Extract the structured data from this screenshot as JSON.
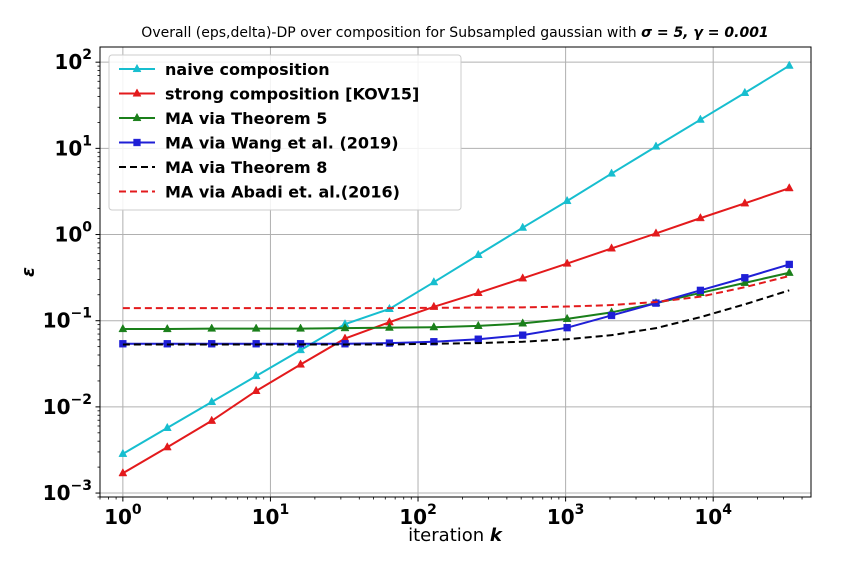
{
  "chart_data": {
    "type": "line",
    "title_parts": {
      "text": "Overall (eps,delta)-DP over composition for Subsampled gaussian with ",
      "math": "σ = 5, γ = 0.001"
    },
    "xlabel": {
      "text": "iteration ",
      "math": "k"
    },
    "ylabel": "ε",
    "xscale": "log",
    "yscale": "log",
    "xlim": [
      0.7,
      46000
    ],
    "ylim": [
      0.0009,
      150
    ],
    "grid": true,
    "legend_position": "upper-left",
    "x_ticks": [
      {
        "value": 1,
        "base": "10",
        "exp": "0"
      },
      {
        "value": 10,
        "base": "10",
        "exp": "1"
      },
      {
        "value": 100,
        "base": "10",
        "exp": "2"
      },
      {
        "value": 1000,
        "base": "10",
        "exp": "3"
      },
      {
        "value": 10000,
        "base": "10",
        "exp": "4"
      }
    ],
    "y_ticks": [
      {
        "value": 0.001,
        "base": "10",
        "exp": "−3"
      },
      {
        "value": 0.01,
        "base": "10",
        "exp": "−2"
      },
      {
        "value": 0.1,
        "base": "10",
        "exp": "−1"
      },
      {
        "value": 1,
        "base": "10",
        "exp": "0"
      },
      {
        "value": 10,
        "base": "10",
        "exp": "1"
      },
      {
        "value": 100,
        "base": "10",
        "exp": "2"
      }
    ],
    "x": [
      1,
      2,
      4,
      8,
      16,
      32,
      64,
      128,
      256,
      512,
      1024,
      2048,
      4096,
      8192,
      16384,
      32768
    ],
    "series": [
      {
        "name": "naive composition",
        "color": "#17becf",
        "marker": "triangle",
        "dash": "solid",
        "values": [
          0.00285,
          0.0057,
          0.0114,
          0.0228,
          0.0456,
          0.0912,
          0.137,
          0.28,
          0.58,
          1.2,
          2.45,
          5.1,
          10.5,
          21.5,
          44,
          91
        ]
      },
      {
        "name": "strong composition [KOV15]",
        "color": "#e31a1c",
        "marker": "triangle",
        "dash": "solid",
        "values": [
          0.0017,
          0.0034,
          0.0069,
          0.0153,
          0.031,
          0.062,
          0.096,
          0.145,
          0.21,
          0.31,
          0.46,
          0.69,
          1.03,
          1.55,
          2.3,
          3.45
        ]
      },
      {
        "name": "MA via Theorem 5",
        "color": "#1a7f1a",
        "marker": "triangle",
        "dash": "solid",
        "values": [
          0.08,
          0.08,
          0.081,
          0.081,
          0.081,
          0.082,
          0.083,
          0.084,
          0.087,
          0.093,
          0.105,
          0.125,
          0.16,
          0.21,
          0.275,
          0.36
        ]
      },
      {
        "name": "MA via Wang et al. (2019)",
        "color": "#1f1fd6",
        "marker": "square",
        "dash": "solid",
        "values": [
          0.054,
          0.054,
          0.054,
          0.054,
          0.054,
          0.054,
          0.055,
          0.057,
          0.061,
          0.068,
          0.083,
          0.115,
          0.16,
          0.225,
          0.315,
          0.45
        ]
      },
      {
        "name": "MA via Theorem 8",
        "color": "#000000",
        "marker": "none",
        "dash": "dashed",
        "values": [
          0.053,
          0.053,
          0.053,
          0.053,
          0.053,
          0.053,
          0.053,
          0.054,
          0.055,
          0.057,
          0.061,
          0.068,
          0.082,
          0.11,
          0.155,
          0.225
        ]
      },
      {
        "name": "MA via Abadi et. al.(2016)",
        "color": "#e31a1c",
        "marker": "none",
        "dash": "dashed",
        "values": [
          0.14,
          0.14,
          0.14,
          0.14,
          0.14,
          0.14,
          0.14,
          0.141,
          0.142,
          0.143,
          0.146,
          0.152,
          0.165,
          0.19,
          0.245,
          0.33
        ]
      }
    ]
  }
}
